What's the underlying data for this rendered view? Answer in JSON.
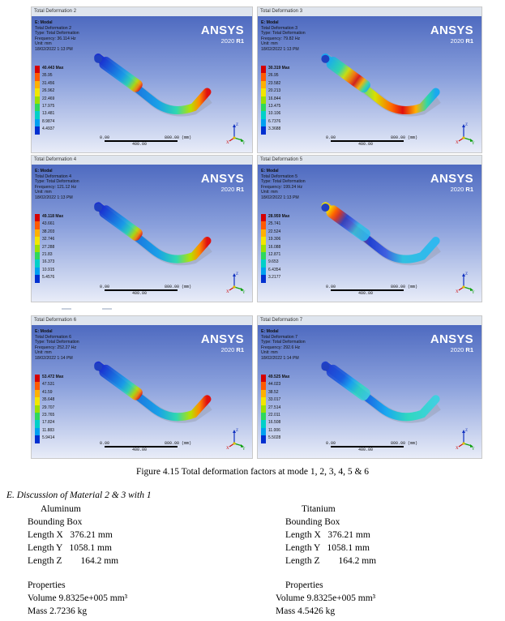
{
  "panels": [
    {
      "title": "Total Deformation 2",
      "info": {
        "e": "E: Modal",
        "name": "Total Deformation 2",
        "type": "Type: Total Deformation",
        "freq": "Frequency: 36.114 Hz",
        "unit": "Unit: mm",
        "date": "18/02/2022 1:13 PM"
      },
      "legend": [
        "40.443 Max",
        "35.95",
        "31.456",
        "26.962",
        "22.469",
        "17.975",
        "13.481",
        "8.9874",
        "4.4937"
      ],
      "scale": [
        "0.00",
        "800.00 (mm)",
        "400.00"
      ],
      "mode_shape": "tip bending"
    },
    {
      "title": "Total Deformation 3",
      "info": {
        "e": "E: Modal",
        "name": "Total Deformation 3",
        "type": "Type: Total Deformation",
        "freq": "Frequency: 79.82 Hz",
        "unit": "Unit: mm",
        "date": "18/02/2022 1:13 PM"
      },
      "legend": [
        "30.319 Max",
        "26.95",
        "23.582",
        "20.213",
        "16.844",
        "13.475",
        "10.106",
        "6.7376",
        "3.3688"
      ],
      "scale": [
        "0.00",
        "800.00 (mm)",
        "400.00"
      ],
      "mode_shape": "bend region"
    },
    {
      "title": "Total Deformation 4",
      "info": {
        "e": "E: Modal",
        "name": "Total Deformation 4",
        "type": "Type: Total Deformation",
        "freq": "Frequency: 121.12 Hz",
        "unit": "Unit: mm",
        "date": "18/02/2022 1:13 PM"
      },
      "legend": [
        "49.118 Max",
        "43.661",
        "38.203",
        "32.746",
        "27.288",
        "21.83",
        "16.373",
        "10.915",
        "5.4576"
      ],
      "scale": [
        "0.00",
        "800.00 (mm)",
        "400.00"
      ],
      "mode_shape": "tip bending"
    },
    {
      "title": "Total Deformation 5",
      "info": {
        "e": "E: Modal",
        "name": "Total Deformation 5",
        "type": "Type: Total Deformation",
        "freq": "Frequency: 199.24 Hz",
        "unit": "Unit: mm",
        "date": "18/02/2022 1:13 PM"
      },
      "legend": [
        "28.959 Max",
        "25.741",
        "22.524",
        "19.306",
        "16.088",
        "12.871",
        "9.653",
        "6.4354",
        "3.2177"
      ],
      "scale": [
        "0.00",
        "800.00 (mm)",
        "400.00"
      ],
      "mode_shape": "body"
    },
    {
      "title": "Total Deformation 6",
      "info": {
        "e": "E: Modal",
        "name": "Total Deformation 6",
        "type": "Type: Total Deformation",
        "freq": "Frequency: 252.27 Hz",
        "unit": "Unit: mm",
        "date": "18/02/2022 1:14 PM"
      },
      "legend": [
        "53.472 Max",
        "47.531",
        "41.59",
        "35.648",
        "29.707",
        "23.765",
        "17.824",
        "11.883",
        "5.9414"
      ],
      "scale": [
        "0.00",
        "800.00 (mm)",
        "400.00"
      ],
      "mode_shape": "tip bending"
    },
    {
      "title": "Total Deformation 7",
      "info": {
        "e": "E: Modal",
        "name": "Total Deformation 7",
        "type": "Type: Total Deformation",
        "freq": "Frequency: 292.6 Hz",
        "unit": "Unit: mm",
        "date": "18/02/2022 1:14 PM"
      },
      "legend": [
        "49.525 Max",
        "44.023",
        "38.52",
        "33.017",
        "27.514",
        "22.011",
        "16.508",
        "11.006",
        "5.5028"
      ],
      "scale": [
        "0.00",
        "800.00 (mm)",
        "400.00"
      ],
      "mode_shape": "tip blue"
    }
  ],
  "brand": {
    "name": "ANSYS",
    "version": "2020",
    "release": "R1"
  },
  "legend_colors": [
    "#d60000",
    "#ff5a00",
    "#ffb000",
    "#f2e600",
    "#9be000",
    "#2ed85c",
    "#00d0c8",
    "#00a0f0",
    "#0030d0"
  ],
  "axis_labels": {
    "z": "Z",
    "x": "X",
    "y": "Y"
  },
  "caption": "Figure 4.15 Total deformation factors at mode 1, 2, 3, 4, 5 & 6",
  "section_heading": "E.    Discussion of Material 2 & 3 with 1",
  "materials": [
    {
      "name": "Aluminum",
      "bbox_label": "Bounding Box",
      "lx": "Length X   376.21 mm",
      "ly": "Length Y   1058.1 mm",
      "lz": "Length Z        164.2 mm",
      "props_label": "Properties",
      "volume": "Volume 9.8325e+005 mm³",
      "mass": "Mass 2.7236 kg"
    },
    {
      "name": "Titanium",
      "bbox_label": "Bounding Box",
      "lx": "Length X   376.21 mm",
      "ly": "Length Y   1058.1 mm",
      "lz": "Length Z        164.2 mm",
      "props_label": "Properties",
      "volume": "Volume 9.8325e+005 mm³",
      "mass": "Mass 4.5426 kg"
    }
  ]
}
